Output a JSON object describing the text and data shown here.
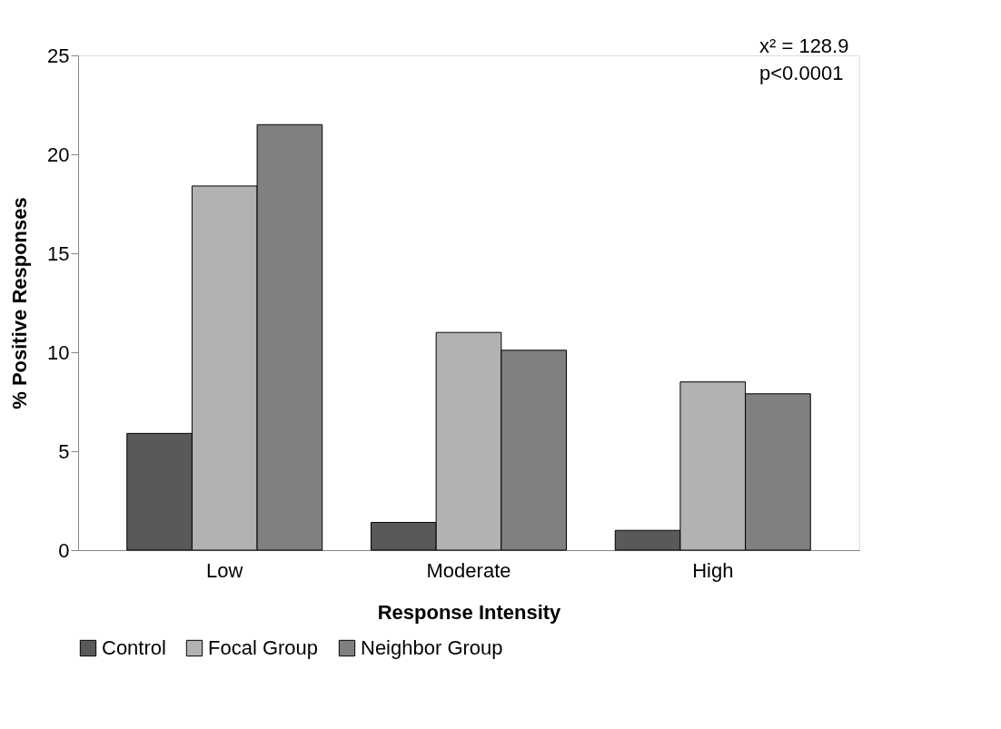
{
  "chart_data": {
    "type": "bar",
    "xlabel": "Response Intensity",
    "ylabel": "% Positive Responses",
    "categories": [
      "Low",
      "Moderate",
      "High"
    ],
    "series": [
      {
        "name": "Control",
        "color": "#595959",
        "values": [
          5.9,
          1.4,
          1.0
        ]
      },
      {
        "name": "Focal Group",
        "color": "#b2b2b2",
        "values": [
          18.4,
          11.0,
          8.5
        ]
      },
      {
        "name": "Neighbor Group",
        "color": "#808080",
        "values": [
          21.5,
          10.1,
          7.9
        ]
      }
    ],
    "ylim": [
      0,
      25
    ],
    "yticks": [
      0,
      5,
      10,
      15,
      20,
      25
    ],
    "grid": false,
    "legend": "bottom",
    "annotations": [
      "x² = 128.9",
      "p<0.0001"
    ]
  }
}
